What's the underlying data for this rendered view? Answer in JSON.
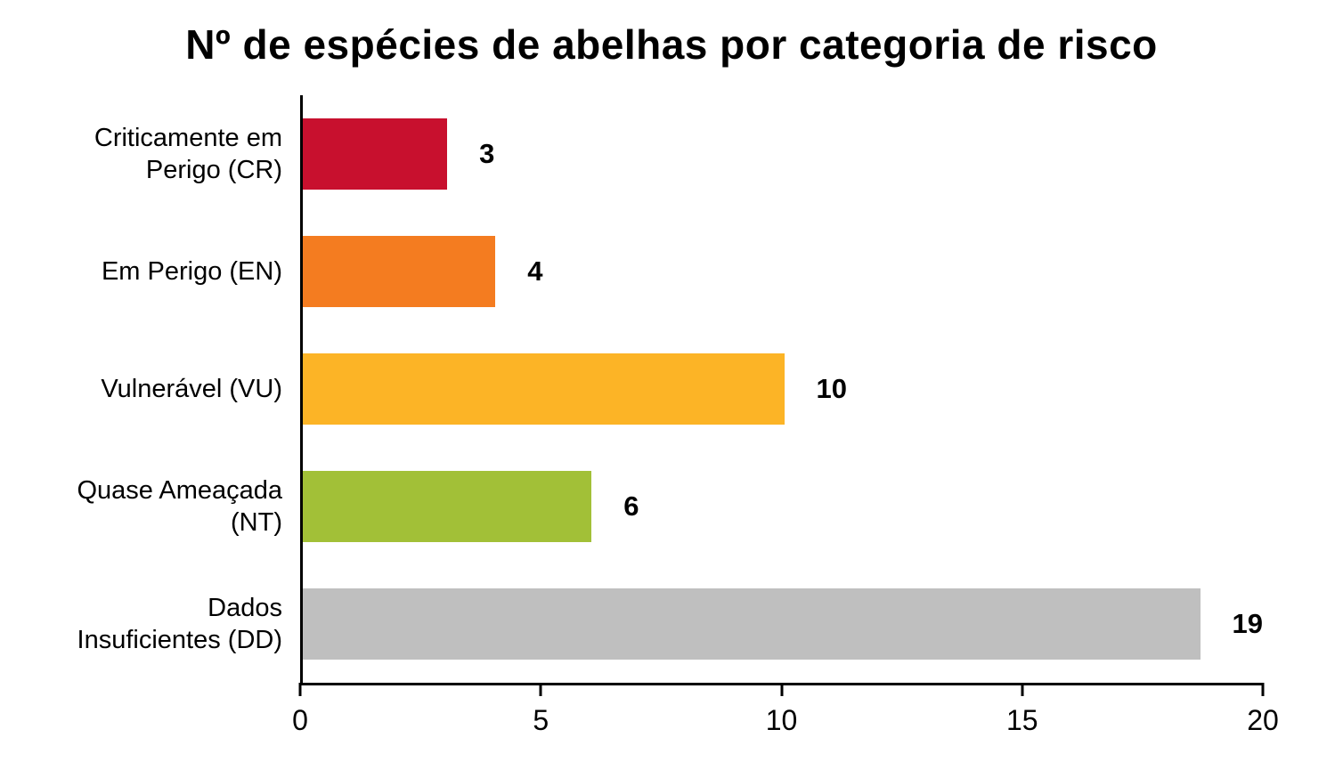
{
  "chart_data": {
    "type": "bar",
    "orientation": "horizontal",
    "title": "Nº de espécies de abelhas por categoria de risco",
    "categories": [
      "Criticamente em Perigo (CR)",
      "Em Perigo (EN)",
      "Vulnerável (VU)",
      "Quase Ameaçada (NT)",
      "Dados Insuficientes (DD)"
    ],
    "values": [
      3,
      4,
      10,
      6,
      19
    ],
    "value_labels": [
      "3",
      "4",
      "10",
      "6",
      "19"
    ],
    "bar_colors": [
      "#c8102e",
      "#f47c20",
      "#fcb426",
      "#a2c037",
      "#bfbfbf"
    ],
    "xlim": [
      0,
      20
    ],
    "x_ticks": [
      0,
      5,
      10,
      15,
      20
    ],
    "xlabel": "",
    "ylabel": "",
    "grid": false,
    "legend": "none",
    "axis_color": "#000000",
    "background_color": "#ffffff"
  }
}
